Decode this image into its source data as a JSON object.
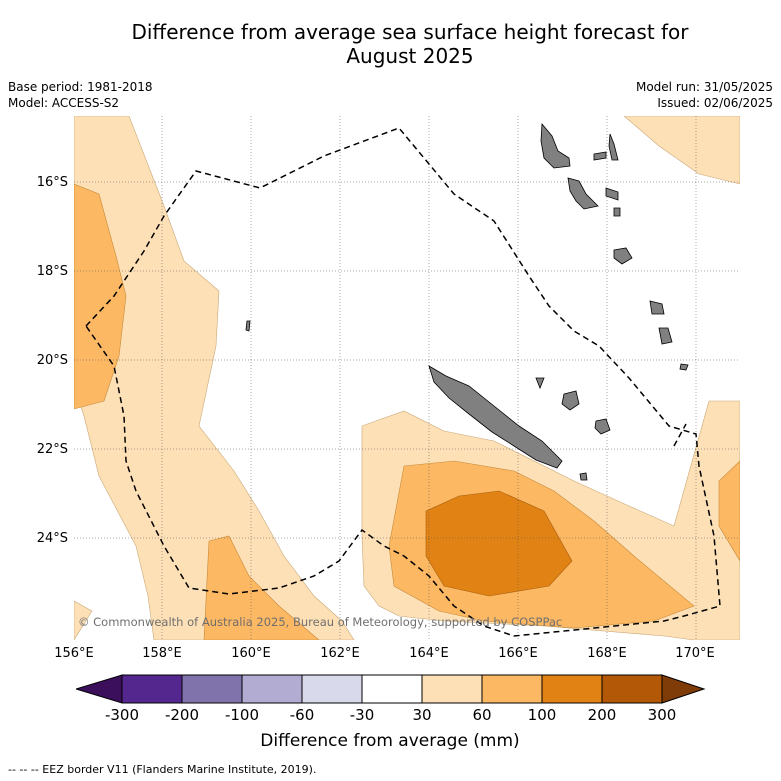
{
  "title_line1": "Difference from average sea surface height forecast for",
  "title_line2": "August 2025",
  "base_period": "Base period: 1981-2018",
  "model": "Model: ACCESS-S2",
  "model_run": "Model run: 31/05/2025",
  "issued": "Issued: 02/06/2025",
  "lat_labels": [
    "16°S",
    "18°S",
    "20°S",
    "22°S",
    "24°S"
  ],
  "lon_labels": [
    "156°E",
    "158°E",
    "160°E",
    "162°E",
    "164°E",
    "166°E",
    "168°E",
    "170°E"
  ],
  "copyright": "© Commonwealth of Australia 2025, Bureau of Meteorology, supported by COSPPac",
  "colorbar": {
    "title": "Difference from average (mm)",
    "ticks": [
      "-300",
      "-200",
      "-100",
      "-60",
      "-30",
      "30",
      "60",
      "100",
      "200",
      "300"
    ],
    "colors": [
      "#3b0f5c",
      "#54278f",
      "#8073ac",
      "#b2abd2",
      "#d8daeb",
      "#ffffff",
      "#fee0b6",
      "#fdb863",
      "#e08214",
      "#b35806",
      "#7f3b08"
    ]
  },
  "footer": "--  --  -- EEZ border V11 (Flanders Marine Institute, 2019).",
  "map_colors": {
    "land": "#808080",
    "light_orange": "#fee0b6",
    "orange": "#fdb863",
    "dark_orange": "#e08214"
  }
}
